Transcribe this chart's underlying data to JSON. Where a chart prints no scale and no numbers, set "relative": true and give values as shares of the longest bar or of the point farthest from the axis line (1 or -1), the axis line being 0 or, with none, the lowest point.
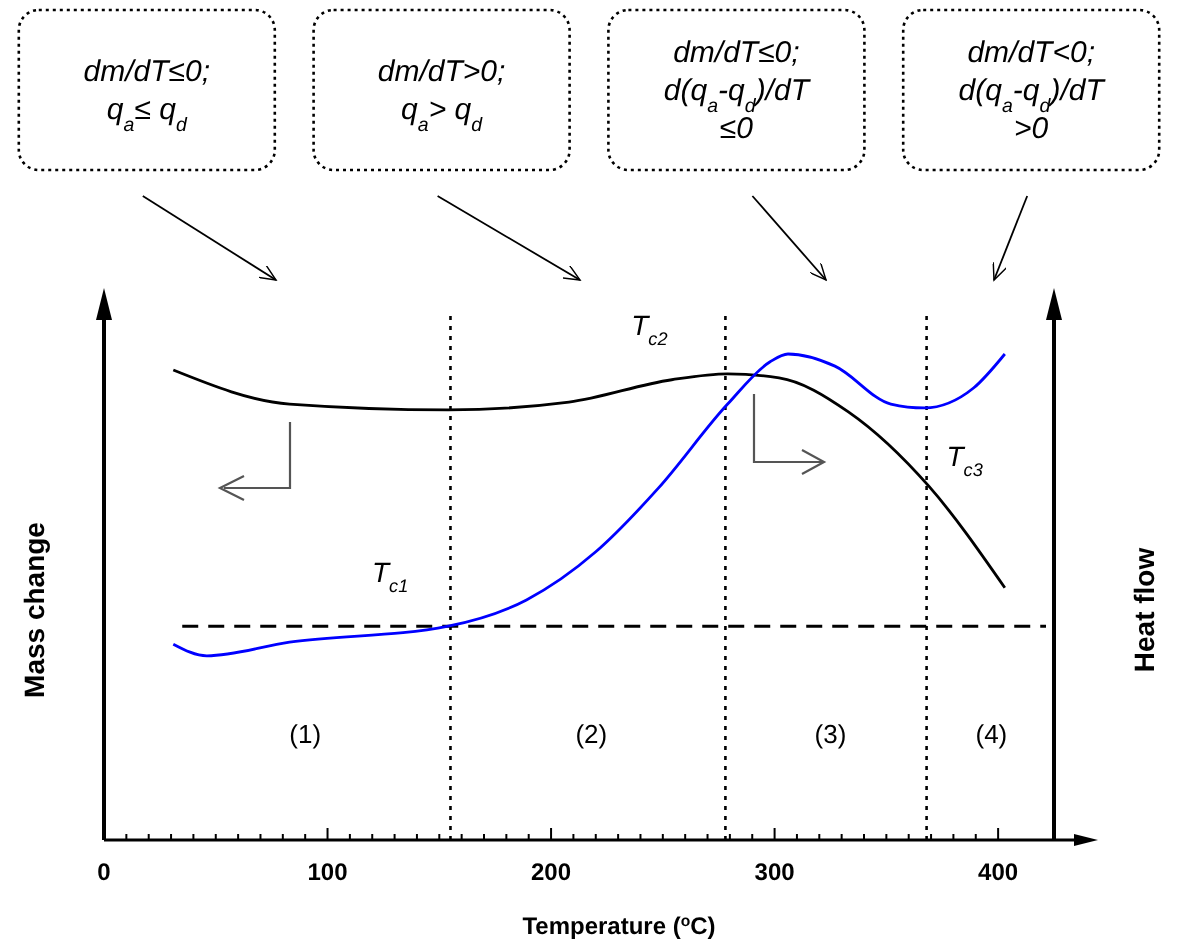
{
  "chart_data": {
    "type": "line",
    "relative": true,
    "xlabel": "Temperature ($^{o}$C)",
    "ylabel": "Mass change",
    "y2label": "Heat flow",
    "xlim": [
      0,
      425
    ],
    "xticks": [
      0,
      {
        "value": 10,
        "label": null
      },
      {
        "value": 20,
        "label": null
      },
      {
        "value": 30,
        "label": null
      },
      {
        "value": 40,
        "label": null
      },
      {
        "value": 50,
        "label": null
      },
      {
        "value": 60,
        "label": null
      },
      {
        "value": 70,
        "label": null
      },
      {
        "value": 80,
        "label": null
      },
      {
        "value": 90,
        "label": null
      },
      100,
      {
        "value": 110,
        "label": null
      },
      {
        "value": 120,
        "label": null
      },
      {
        "value": 130,
        "label": null
      },
      {
        "value": 140,
        "label": null
      },
      {
        "value": 150,
        "label": null
      },
      {
        "value": 160,
        "label": null
      },
      {
        "value": 170,
        "label": null
      },
      {
        "value": 180,
        "label": null
      },
      {
        "value": 190,
        "label": null
      },
      200,
      {
        "value": 210,
        "label": null
      },
      {
        "value": 220,
        "label": null
      },
      {
        "value": 230,
        "label": null
      },
      {
        "value": 240,
        "label": null
      },
      {
        "value": 250,
        "label": null
      },
      {
        "value": 260,
        "label": null
      },
      {
        "value": 270,
        "label": null
      },
      {
        "value": 280,
        "label": null
      },
      {
        "value": 290,
        "label": null
      },
      300,
      {
        "value": 310,
        "label": null
      },
      {
        "value": 320,
        "label": null
      },
      {
        "value": 330,
        "label": null
      },
      {
        "value": 340,
        "label": null
      },
      {
        "value": 350,
        "label": null
      },
      {
        "value": 360,
        "label": null
      },
      {
        "value": 370,
        "label": null
      },
      {
        "value": 380,
        "label": null
      },
      {
        "value": 390,
        "label": null
      },
      400
    ],
    "grid": false,
    "marker": "none",
    "line_style": "solid",
    "series": [
      {
        "color": "#000000",
        "x": [
          31,
          83,
          154,
          208,
          254,
          279,
          302,
          333,
          369,
          403
        ],
        "values": [
          0.967,
          0.897,
          0.885,
          0.901,
          0.947,
          0.959,
          0.951,
          0.881,
          0.728,
          0.519
        ]
      },
      {
        "color": "#0000ff",
        "x": [
          31,
          46,
          83,
          154,
          189,
          220,
          248,
          279,
          298,
          306,
          327,
          352,
          367,
          389,
          403
        ],
        "values": [
          0.403,
          0.379,
          0.407,
          0.44,
          0.494,
          0.593,
          0.724,
          0.897,
          0.984,
          1,
          0.975,
          0.897,
          0.889,
          0.93,
          1
        ]
      }
    ],
    "ref_lines": [
      {
        "axis": "x",
        "value": 155,
        "line_style": "dotted",
        "color": "#000000"
      },
      {
        "axis": "x",
        "value": 278,
        "line_style": "dotted",
        "color": "#000000"
      },
      {
        "axis": "x",
        "value": 368,
        "line_style": "dotted",
        "color": "#000000"
      },
      {
        "axis": "y",
        "value": 0.44,
        "line_style": "dashed",
        "color": "#000000"
      }
    ],
    "annotations": [
      "dm/dT≤0; q$_{a}$≤ q$_{d}$",
      "dm/dT>0; q$_{a}$> q$_{d}$",
      "dm/dT≤0; d(q$_{a}$-q$_{d}$)/dT ≤0",
      "dm/dT<0; d(q$_{a}$-q$_{d}$)/dT >0",
      "T$_{c1}$",
      "T$_{c2}$",
      "T$_{c3}$",
      "(1)",
      "(2)",
      "(3)",
      "(4)"
    ]
  }
}
